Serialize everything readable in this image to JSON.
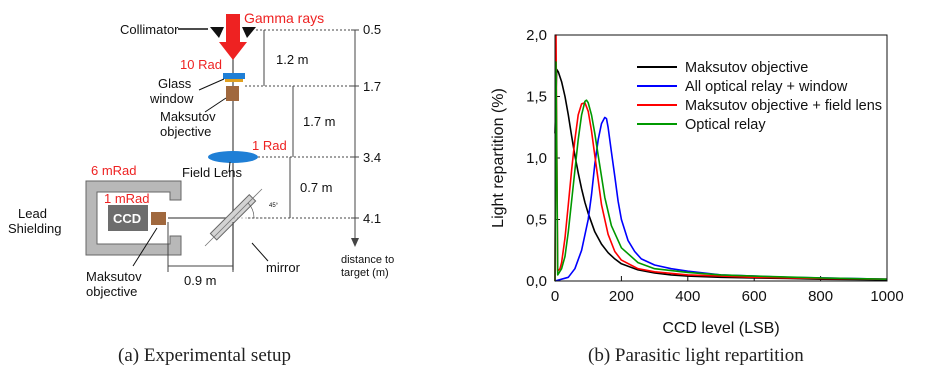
{
  "setup": {
    "collimator": "Collimator",
    "gamma_rays": "Gamma rays",
    "dose_window": "10 Rad",
    "glass_window": [
      "Glass",
      "window"
    ],
    "maksutov_top": [
      "Maksutov",
      "objective"
    ],
    "dose_lens": "1 Rad",
    "field_lens": "Field Lens",
    "dose_shield": "6 mRad",
    "dose_ccd": "1 mRad",
    "ccd": "CCD",
    "lead_shielding": [
      "Lead",
      "Shielding"
    ],
    "maksutov_bottom": [
      "Maksutov",
      "objective"
    ],
    "mirror": "mirror",
    "angle": "45°",
    "dist_1": "1.2 m",
    "dist_2": "1.7 m",
    "dist_3": "0.7 m",
    "dist_h": "0.9 m",
    "scale_values": [
      "0.5",
      "1.7",
      "3.4",
      "4.1"
    ],
    "scale_label": [
      "distance to",
      "target (m)"
    ],
    "colors": {
      "red": "#ee2222",
      "lens": "#1f7fd6",
      "ccd": "#6d6d6d",
      "obj": "#a0683e"
    }
  },
  "captions": {
    "a": "(a) Experimental setup",
    "b": "(b) Parasitic light repartition"
  },
  "chart_data": {
    "type": "line",
    "xlabel": "CCD level (LSB)",
    "ylabel": "Light repartition (%)",
    "xlim": [
      0,
      1000
    ],
    "ylim": [
      0,
      2.0
    ],
    "x_ticks": [
      "0",
      "200",
      "400",
      "600",
      "800",
      "1000"
    ],
    "y_ticks": [
      "0,0",
      "0,5",
      "1,0",
      "1,5",
      "2,0"
    ],
    "grid": false,
    "legend": "top-right",
    "series": [
      {
        "name": "Maksutov objective",
        "color": "#000000",
        "x": [
          0,
          5,
          10,
          20,
          30,
          40,
          50,
          60,
          70,
          80,
          90,
          100,
          120,
          140,
          160,
          180,
          200,
          250,
          300,
          350,
          400,
          500,
          600,
          700,
          800,
          900,
          1000
        ],
        "y": [
          1.2,
          1.72,
          1.7,
          1.62,
          1.5,
          1.35,
          1.18,
          1.02,
          0.88,
          0.75,
          0.64,
          0.55,
          0.4,
          0.3,
          0.23,
          0.18,
          0.14,
          0.09,
          0.065,
          0.05,
          0.04,
          0.03,
          0.025,
          0.02,
          0.015,
          0.012,
          0.01
        ]
      },
      {
        "name": "All optical relay + window",
        "color": "#0000ff",
        "x": [
          0,
          40,
          60,
          80,
          100,
          110,
          120,
          130,
          140,
          150,
          155,
          160,
          170,
          180,
          190,
          200,
          220,
          240,
          260,
          300,
          350,
          400,
          450,
          500,
          600,
          700,
          800,
          900,
          1000
        ],
        "y": [
          0.0,
          0.03,
          0.1,
          0.25,
          0.5,
          0.7,
          0.95,
          1.15,
          1.28,
          1.33,
          1.32,
          1.25,
          1.05,
          0.85,
          0.65,
          0.5,
          0.33,
          0.24,
          0.18,
          0.13,
          0.1,
          0.08,
          0.065,
          0.05,
          0.04,
          0.03,
          0.025,
          0.02,
          0.015
        ]
      },
      {
        "name": "Maksutov objective + field lens",
        "color": "#ff0000",
        "x": [
          0,
          3,
          8,
          15,
          20,
          30,
          40,
          50,
          60,
          70,
          80,
          90,
          100,
          110,
          120,
          130,
          140,
          160,
          180,
          200,
          250,
          300,
          400,
          500,
          600,
          800,
          1000
        ],
        "y": [
          0.0,
          2.0,
          0.08,
          0.1,
          0.15,
          0.35,
          0.62,
          0.9,
          1.15,
          1.35,
          1.44,
          1.45,
          1.38,
          1.22,
          1.02,
          0.82,
          0.62,
          0.38,
          0.24,
          0.17,
          0.1,
          0.075,
          0.05,
          0.04,
          0.03,
          0.02,
          0.015
        ]
      },
      {
        "name": "Optical relay",
        "color": "#009900",
        "x": [
          0,
          3,
          8,
          20,
          30,
          40,
          50,
          60,
          70,
          80,
          90,
          95,
          100,
          110,
          120,
          130,
          140,
          150,
          170,
          200,
          250,
          300,
          400,
          500,
          600,
          800,
          1000
        ],
        "y": [
          0.0,
          1.78,
          0.05,
          0.1,
          0.2,
          0.4,
          0.65,
          0.9,
          1.15,
          1.35,
          1.46,
          1.47,
          1.45,
          1.35,
          1.2,
          1.02,
          0.85,
          0.68,
          0.45,
          0.27,
          0.15,
          0.1,
          0.07,
          0.05,
          0.04,
          0.025,
          0.015
        ]
      }
    ]
  }
}
